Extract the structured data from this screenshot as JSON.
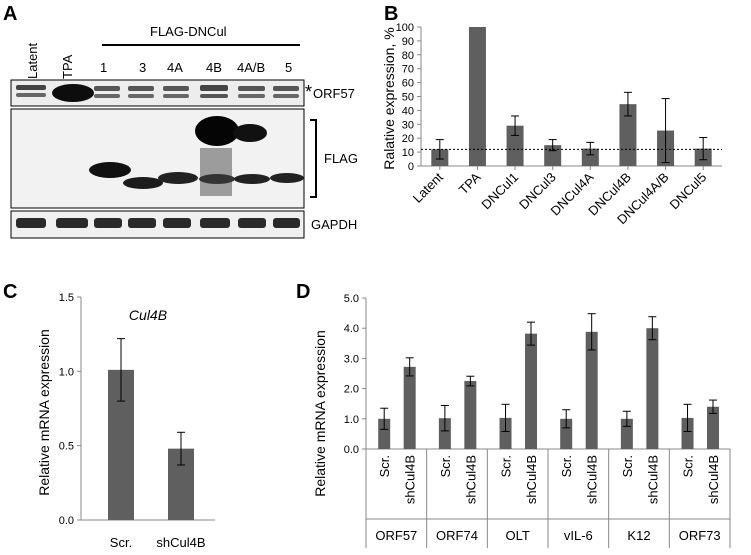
{
  "panel_letters": {
    "a": "A",
    "b": "B",
    "c": "C",
    "d": "D"
  },
  "blot": {
    "header": "FLAG-DNCul",
    "lanes": [
      "Latent",
      "TPA",
      "1",
      "3",
      "4A",
      "4B",
      "4A/B",
      "5"
    ],
    "rows": [
      "ORF57",
      "FLAG",
      "GAPDH"
    ],
    "asterisk": "*"
  },
  "colors": {
    "bar": "#5f5f5f",
    "axis": "#888888",
    "dotted": "#000000"
  },
  "chart_data": [
    {
      "panel": "B",
      "type": "bar",
      "categories": [
        "Latent",
        "TPA",
        "DNCul1",
        "DNCul3",
        "DNCul4A",
        "DNCul4B",
        "DNCul4A/B",
        "DNCul5"
      ],
      "values": [
        12,
        100,
        29,
        15,
        12.5,
        44.5,
        25.5,
        12.5
      ],
      "errors": [
        7,
        0,
        7,
        4,
        4.5,
        8.5,
        23,
        8
      ],
      "ylabel": "Ralative expression, %",
      "ylim": [
        0,
        100
      ],
      "yticks": [
        "0",
        "10",
        "20",
        "30",
        "40",
        "50",
        "60",
        "70",
        "80",
        "90",
        "100"
      ],
      "reference_line": 12,
      "grid": false
    },
    {
      "panel": "C",
      "type": "bar",
      "title": "Cul4B",
      "categories": [
        "Scr.",
        "shCul4B"
      ],
      "values": [
        1.01,
        0.48
      ],
      "errors": [
        0.21,
        0.11
      ],
      "ylabel": "Relative mRNA expression",
      "ylim": [
        0,
        1.5
      ],
      "yticks": [
        "0.0",
        "0.5",
        "1.0",
        "1.5"
      ],
      "grid": false
    },
    {
      "panel": "D",
      "type": "bar",
      "groups": [
        "ORF57",
        "ORF74",
        "OLT",
        "vIL-6",
        "K12",
        "ORF73"
      ],
      "conditions": [
        "Scr.",
        "shCul4B"
      ],
      "values": [
        [
          1.0,
          2.72
        ],
        [
          1.02,
          2.25
        ],
        [
          1.03,
          3.82
        ],
        [
          1.0,
          3.88
        ],
        [
          1.0,
          4.0
        ],
        [
          1.03,
          1.4
        ]
      ],
      "errors": [
        [
          0.35,
          0.3
        ],
        [
          0.42,
          0.16
        ],
        [
          0.45,
          0.38
        ],
        [
          0.3,
          0.6
        ],
        [
          0.25,
          0.38
        ],
        [
          0.45,
          0.22
        ]
      ],
      "ylabel": "Relative mRNA expression",
      "ylim": [
        0,
        5
      ],
      "yticks": [
        "0.0",
        "1.0",
        "2.0",
        "3.0",
        "4.0",
        "5.0"
      ],
      "grid": false
    }
  ]
}
